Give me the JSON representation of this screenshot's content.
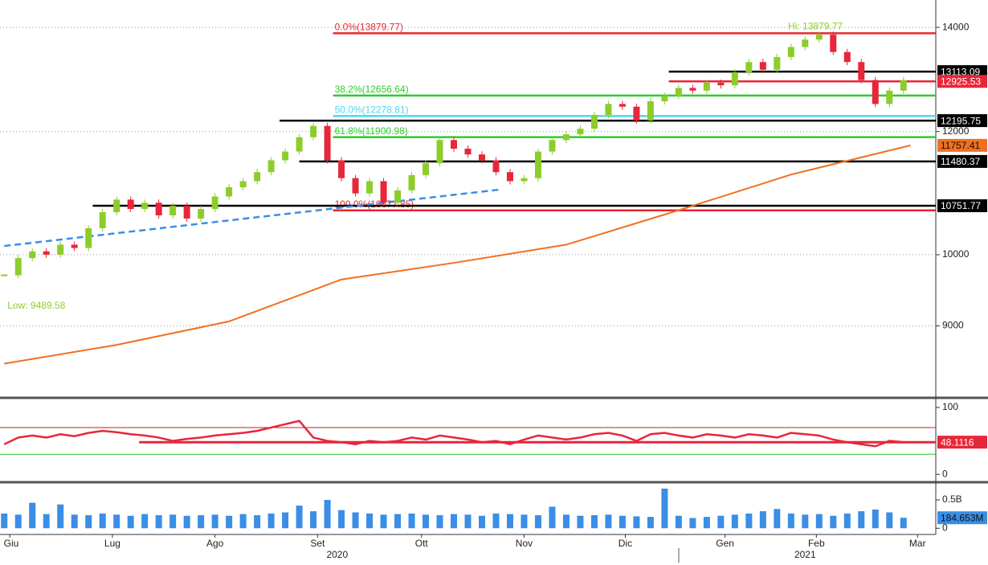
{
  "chart_data": [
    {
      "type": "candlestick",
      "scale": "log",
      "ylim": [
        8110,
        14580
      ],
      "yticks": [
        9000,
        10000,
        12000,
        14000
      ],
      "grid": true,
      "xlim": [
        -0.3,
        66.3
      ],
      "up_color": "#8ccd2b",
      "down_color": "#e8263a",
      "close": [
        9700,
        9950,
        10050,
        10000,
        10150,
        10100,
        10400,
        10650,
        10850,
        10700,
        10800,
        10600,
        10750,
        10550,
        10700,
        10900,
        11050,
        11150,
        11300,
        11500,
        11650,
        11900,
        12100,
        11500,
        11200,
        10950,
        11150,
        10800,
        11000,
        11250,
        11450,
        11850,
        11700,
        11600,
        11500,
        11300,
        11150,
        11200,
        11650,
        11850,
        11950,
        12050,
        12300,
        12500,
        12450,
        12200,
        12550,
        12650,
        12800,
        12750,
        12900,
        12850,
        13100,
        13300,
        13150,
        13400,
        13600,
        13750,
        13850,
        13500,
        13300,
        12950,
        12500,
        12750,
        12950
      ],
      "ma": {
        "color": "#f07020",
        "x": [
          0,
          8,
          16,
          24,
          32,
          40,
          48,
          56,
          64.5
        ],
        "values": [
          8510,
          8750,
          9060,
          9640,
          9880,
          10150,
          10680,
          11260,
          11757.41
        ]
      },
      "trendline": {
        "color": "#3a8ee6",
        "x": [
          0,
          35.2
        ],
        "values": [
          10130,
          11010
        ]
      },
      "levels": [
        {
          "value": 13879.77,
          "label": "0.0%(13879.77)",
          "color": "#e8262f",
          "start": 23.4
        },
        {
          "value": 12656.64,
          "label": "38.2%(12656.64)",
          "color": "#2ecc2e",
          "start": 23.4
        },
        {
          "value": 12278.81,
          "label": "50.0%(12278.81)",
          "color": "#4fd6f0",
          "start": 23.4
        },
        {
          "value": 11900.98,
          "label": "61.8%(11900.98)",
          "color": "#2ecc2e",
          "start": 23.4
        },
        {
          "value": 10677.85,
          "label": "100.0%(10677.85)",
          "color": "#e8262f",
          "start": 23.4
        },
        {
          "value": 13113.09,
          "color": "#000000",
          "start": 47.3
        },
        {
          "value": 12925.53,
          "color": "#e8263a",
          "start": 47.3
        },
        {
          "value": 12195.75,
          "color": "#000000",
          "start": 19.6
        },
        {
          "value": 11480.37,
          "color": "#000000",
          "start": 21
        },
        {
          "value": 10751.77,
          "color": "#000000",
          "start": 6.3
        }
      ],
      "annotations": [
        {
          "text": "Hi: 13879.77",
          "x": 57.5,
          "y": 13879.77
        },
        {
          "text": "Low: 9489.58",
          "x": 0,
          "y": 9489.58
        }
      ]
    },
    {
      "type": "line",
      "ylim": [
        -7,
        112
      ],
      "yticks": [
        0,
        100
      ],
      "xlim": [
        -0.3,
        66.3
      ],
      "color": "#e8263a",
      "values": [
        45,
        55,
        58,
        55,
        60,
        57,
        62,
        65,
        63,
        60,
        58,
        55,
        50,
        53,
        55,
        58,
        60,
        62,
        65,
        70,
        75,
        80,
        55,
        50,
        48,
        45,
        50,
        48,
        50,
        55,
        52,
        58,
        55,
        52,
        48,
        50,
        45,
        52,
        58,
        55,
        52,
        55,
        60,
        62,
        58,
        50,
        60,
        62,
        58,
        55,
        60,
        58,
        55,
        60,
        58,
        55,
        62,
        60,
        58,
        52,
        48,
        45,
        42,
        50,
        48.1116
      ],
      "ref_lines": [
        {
          "value": 70,
          "color": "#c02020",
          "start": -0.3
        },
        {
          "value": 30,
          "color": "#30c030",
          "start": -0.3
        },
        {
          "value": 48,
          "color": "#e8263a",
          "start": 9.6
        }
      ]
    },
    {
      "type": "bar",
      "ylim": [
        -0.11,
        0.77
      ],
      "yticks": [
        0,
        {
          "value": 0.5,
          "label": "0.5B"
        }
      ],
      "xlim": [
        -0.3,
        66.3
      ],
      "color": "#3a8ee6",
      "values": [
        0.26,
        0.24,
        0.45,
        0.25,
        0.42,
        0.24,
        0.23,
        0.26,
        0.24,
        0.22,
        0.25,
        0.23,
        0.24,
        0.22,
        0.23,
        0.24,
        0.22,
        0.25,
        0.23,
        0.26,
        0.28,
        0.4,
        0.3,
        0.5,
        0.32,
        0.28,
        0.26,
        0.24,
        0.25,
        0.26,
        0.24,
        0.23,
        0.25,
        0.24,
        0.22,
        0.26,
        0.25,
        0.24,
        0.23,
        0.38,
        0.24,
        0.22,
        0.23,
        0.24,
        0.22,
        0.21,
        0.2,
        0.7,
        0.22,
        0.18,
        0.2,
        0.22,
        0.24,
        0.26,
        0.3,
        0.34,
        0.26,
        0.24,
        0.25,
        0.22,
        0.26,
        0.3,
        0.33,
        0.28,
        0.184653
      ],
      "current": {
        "value": 0.184653,
        "label": "184.653M"
      },
      "xticks": [
        {
          "value": 0.4,
          "label": "Giu"
        },
        {
          "value": 7.7,
          "label": "Lug"
        },
        {
          "value": 15,
          "label": "Ago"
        },
        {
          "value": 22.3,
          "label": "Set"
        },
        {
          "value": 29.7,
          "label": "Ott"
        },
        {
          "value": 37,
          "label": "Nov"
        },
        {
          "value": 44.2,
          "label": "Dic"
        },
        {
          "value": 51.3,
          "label": "Gen"
        },
        {
          "value": 57.8,
          "label": "Feb"
        },
        {
          "value": 65,
          "label": "Mar"
        }
      ],
      "year_labels": [
        {
          "value": 23.7,
          "label": "2020"
        },
        {
          "value": 57,
          "label": "2021"
        }
      ]
    }
  ]
}
